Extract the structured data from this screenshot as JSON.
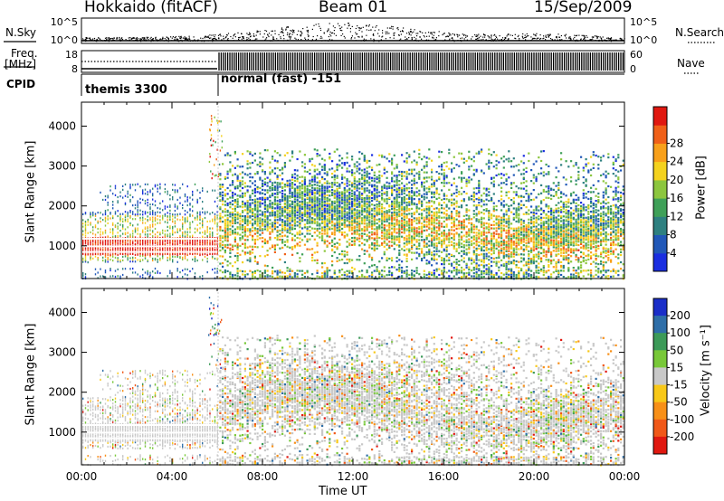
{
  "header": {
    "station": "Hokkaido (fitACF)",
    "beam": "Beam 01",
    "date": "15/Sep/2009"
  },
  "left_labels": {
    "nsky": "N.Sky",
    "freq": "Freq.",
    "freq_unit": "[MHz]",
    "cpid": "CPID"
  },
  "right_labels": {
    "nsearch": "N.Search",
    "nave": "Nave"
  },
  "cpid_segments": [
    "themis 3300",
    "normal (fast) -151"
  ],
  "chart_data": [
    {
      "type": "scatter",
      "panel": "noise",
      "yticks": [
        "10^5",
        "10^0"
      ],
      "right_yticks": [
        "10^5",
        "10^0"
      ],
      "series": [
        {
          "name": "N.Sky"
        },
        {
          "name": "N.Search"
        }
      ]
    },
    {
      "type": "line",
      "panel": "frequency",
      "yticks": [
        18,
        8
      ],
      "right_yticks": [
        60,
        0
      ],
      "series": [
        {
          "name": "Freq."
        },
        {
          "name": "Nave"
        }
      ]
    },
    {
      "type": "heatmap",
      "panel": "power",
      "ylabel": "Slant Range [km]",
      "yticks": [
        1000,
        2000,
        3000,
        4000
      ],
      "ylim": [
        180,
        4600
      ],
      "xlim": [
        "00:00",
        "24:00"
      ],
      "colorbar": {
        "label": "Power [dB]",
        "ticks": [
          4,
          8,
          12,
          16,
          20,
          24,
          28
        ],
        "colors": [
          "#1a2ee0",
          "#2158b8",
          "#2e8080",
          "#3fa058",
          "#8cc63e",
          "#f4d21e",
          "#f8a01a",
          "#f06018",
          "#e01810"
        ]
      }
    },
    {
      "type": "heatmap",
      "panel": "velocity",
      "ylabel": "Slant Range [km]",
      "yticks": [
        1000,
        2000,
        3000,
        4000
      ],
      "ylim": [
        180,
        4600
      ],
      "xlabel": "Time UT",
      "xticks": [
        "00:00",
        "04:00",
        "08:00",
        "12:00",
        "16:00",
        "20:00",
        "00:00"
      ],
      "colorbar": {
        "label": "Velocity [m s⁻¹]",
        "ticks": [
          200,
          100,
          50,
          15,
          -15,
          -50,
          -100,
          -200
        ],
        "colors": [
          "#1a2ec8",
          "#2e6ea8",
          "#3c9a58",
          "#78c838",
          "#c8c8c8",
          "#f8c818",
          "#f89018",
          "#f05818",
          "#e01810"
        ]
      }
    }
  ]
}
